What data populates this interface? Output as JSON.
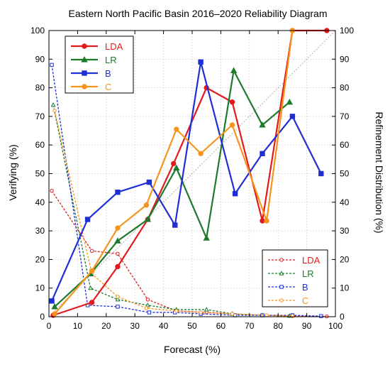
{
  "chart_data": {
    "type": "line",
    "title": "Eastern North Pacific Basin 2016–2020 Reliability Diagram",
    "xlabel": "Forecast (%)",
    "ylabel": "Verifying (%)",
    "y2label": "Refinement Distribution (%)",
    "xlim": [
      0,
      100
    ],
    "ylim": [
      0,
      100
    ],
    "y2lim": [
      0,
      100
    ],
    "x_ticks": [
      "0",
      "10",
      "20",
      "30",
      "40",
      "50",
      "60",
      "70",
      "80",
      "90",
      "100"
    ],
    "y_ticks": [
      "0",
      "10",
      "20",
      "30",
      "40",
      "50",
      "60",
      "70",
      "80",
      "90",
      "100"
    ],
    "y2_ticks": [
      "0",
      "10",
      "20",
      "30",
      "40",
      "50",
      "60",
      "70",
      "80",
      "90",
      "100"
    ],
    "grid": true,
    "diagonal_reference": true,
    "reliability_series": [
      {
        "name": "LDA",
        "color": "#e31a1c",
        "marker": "circle",
        "points": [
          [
            1.5,
            0.5
          ],
          [
            15,
            5
          ],
          [
            24,
            17.5
          ],
          [
            34.5,
            34
          ],
          [
            43.5,
            53.5
          ],
          [
            55,
            80
          ],
          [
            64,
            75
          ],
          [
            74.5,
            33.5
          ],
          [
            85,
            100
          ],
          [
            97,
            100
          ]
        ]
      },
      {
        "name": "LR",
        "color": "#1b7b2a",
        "marker": "triangle",
        "points": [
          [
            2,
            3.5
          ],
          [
            14.5,
            15
          ],
          [
            24,
            26.5
          ],
          [
            34.5,
            34
          ],
          [
            44.5,
            52
          ],
          [
            55,
            27.5
          ],
          [
            64.5,
            86
          ],
          [
            74.5,
            67
          ],
          [
            84,
            75
          ]
        ]
      },
      {
        "name": "B",
        "color": "#1f2fd6",
        "marker": "square",
        "points": [
          [
            1,
            5.5
          ],
          [
            13.5,
            34
          ],
          [
            24,
            43.5
          ],
          [
            35,
            47
          ],
          [
            44,
            32
          ],
          [
            53,
            89
          ],
          [
            65,
            43
          ],
          [
            74.5,
            57
          ],
          [
            85,
            70
          ],
          [
            95,
            50
          ]
        ]
      },
      {
        "name": "C",
        "color": "#f7941d",
        "marker": "circle",
        "points": [
          [
            2,
            1
          ],
          [
            15,
            16
          ],
          [
            24,
            31
          ],
          [
            34,
            39
          ],
          [
            44.5,
            65.5
          ],
          [
            53,
            57
          ],
          [
            64,
            67
          ],
          [
            76,
            33.5
          ],
          [
            85,
            100
          ]
        ]
      }
    ],
    "refinement_series": [
      {
        "name": "LDA",
        "color": "#e31a1c",
        "marker": "circle",
        "points": [
          [
            1,
            44
          ],
          [
            15,
            23
          ],
          [
            24,
            22
          ],
          [
            34.5,
            6
          ],
          [
            44.5,
            2
          ],
          [
            55,
            1.5
          ],
          [
            64,
            1
          ],
          [
            74.5,
            0.5
          ],
          [
            85,
            0.2
          ],
          [
            97,
            0.1
          ]
        ]
      },
      {
        "name": "LR",
        "color": "#1b7b2a",
        "marker": "triangle",
        "points": [
          [
            1.5,
            74
          ],
          [
            14.5,
            10
          ],
          [
            24,
            6
          ],
          [
            34.5,
            4
          ],
          [
            44.5,
            2.5
          ],
          [
            55,
            2.5
          ],
          [
            64,
            1
          ],
          [
            74.5,
            0.5
          ],
          [
            84,
            0.3
          ]
        ]
      },
      {
        "name": "B",
        "color": "#1f2fd6",
        "marker": "square",
        "points": [
          [
            1,
            88
          ],
          [
            13.5,
            4
          ],
          [
            24,
            3.5
          ],
          [
            35,
            1.5
          ],
          [
            44,
            1.5
          ],
          [
            53,
            1
          ],
          [
            65,
            0.5
          ],
          [
            74.5,
            0.5
          ],
          [
            85,
            0.5
          ],
          [
            95,
            0.2
          ]
        ]
      },
      {
        "name": "C",
        "color": "#f7941d",
        "marker": "circle",
        "points": [
          [
            2,
            72
          ],
          [
            15,
            15
          ],
          [
            24,
            7
          ],
          [
            34,
            3
          ],
          [
            44.5,
            2
          ],
          [
            53,
            1.5
          ],
          [
            64,
            1
          ],
          [
            76,
            0.5
          ],
          [
            85,
            0.3
          ]
        ]
      }
    ],
    "legend_top": {
      "placement": "top-left",
      "entries": [
        "LDA",
        "LR",
        "B",
        "C"
      ]
    },
    "legend_bottom": {
      "placement": "bottom-right",
      "entries": [
        "LDA",
        "LR",
        "B",
        "C"
      ]
    }
  }
}
